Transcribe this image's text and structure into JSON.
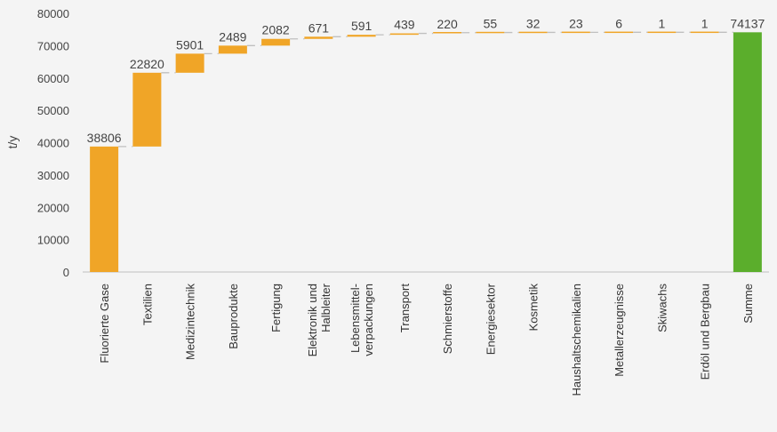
{
  "chart_data": {
    "type": "bar",
    "variant": "waterfall",
    "title": "",
    "xlabel": "",
    "ylabel": "t/y",
    "ylim": [
      0,
      80000
    ],
    "yticks": [
      0,
      10000,
      20000,
      30000,
      40000,
      50000,
      60000,
      70000,
      80000
    ],
    "grid": false,
    "legend": "none",
    "categories": [
      [
        "Fluorierte Gase"
      ],
      [
        "Textilien"
      ],
      [
        "Medizintechnik"
      ],
      [
        "Bauprodukte"
      ],
      [
        "Fertigung"
      ],
      [
        "Elektronik und",
        "Halbleiter"
      ],
      [
        "Lebensmittel-",
        "verpackungen"
      ],
      [
        "Transport"
      ],
      [
        "Schmierstoffe"
      ],
      [
        "Energiesektor"
      ],
      [
        "Kosmetik"
      ],
      [
        "Haushaltschemikalien"
      ],
      [
        "Metallerzeugnisse"
      ],
      [
        "Skiwachs"
      ],
      [
        "Erdöl und Bergbau"
      ],
      [
        "Summe"
      ]
    ],
    "values": [
      38806,
      22820,
      5901,
      2489,
      2082,
      671,
      591,
      439,
      220,
      55,
      32,
      23,
      6,
      1,
      1,
      74137
    ],
    "labels": [
      "38806",
      "22820",
      "5901",
      "2489",
      "2082",
      "671",
      "591",
      "439",
      "220",
      "55",
      "32",
      "23",
      "6",
      "1",
      "1",
      "74137"
    ],
    "total_index": 15,
    "colors": {
      "increase": "#F0A527",
      "total": "#5BAE2C",
      "connector": "#BFBFBF",
      "axis": "#BFBFBF",
      "text": "#444444",
      "background": "#F4F4F4"
    }
  }
}
